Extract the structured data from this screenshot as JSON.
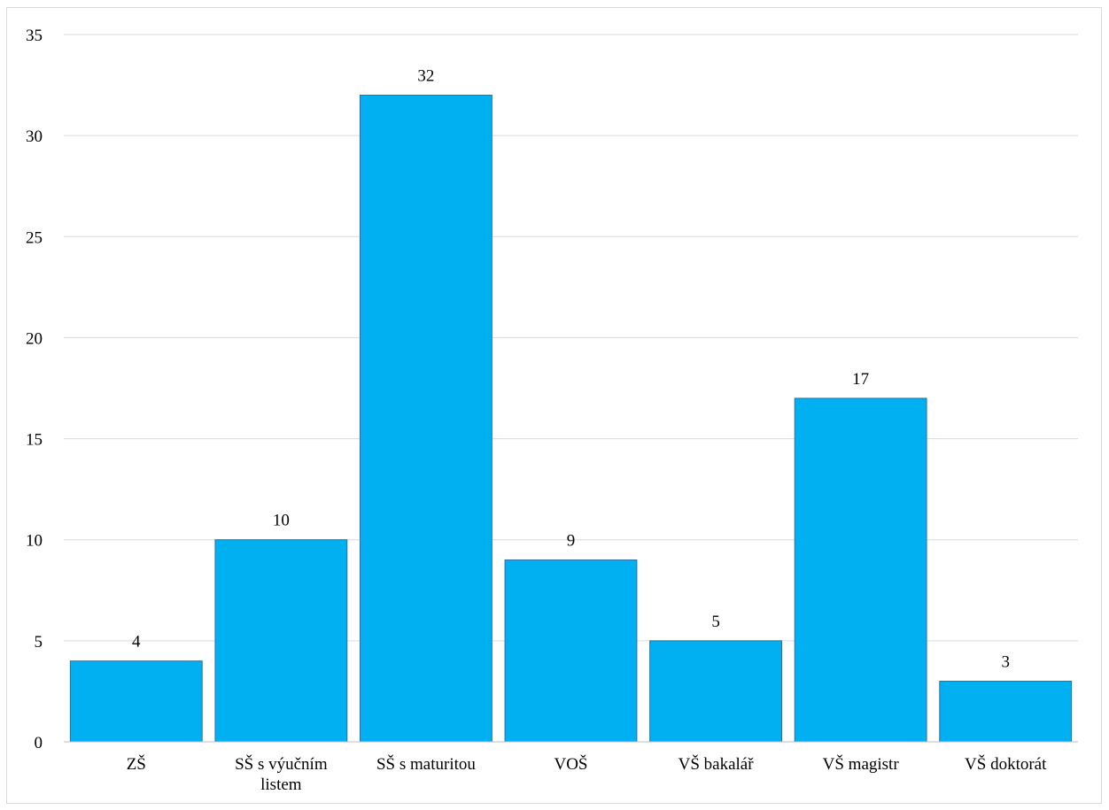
{
  "chart_data": {
    "type": "bar",
    "title": "",
    "xlabel": "",
    "ylabel": "",
    "categories": [
      [
        "ZŠ"
      ],
      [
        "SŠ s výučním",
        "listem"
      ],
      [
        "SŠ s maturitou"
      ],
      [
        "VOŠ"
      ],
      [
        "VŠ bakalář"
      ],
      [
        "VŠ magistr"
      ],
      [
        "VŠ doktorát"
      ]
    ],
    "values": [
      4,
      10,
      32,
      9,
      5,
      17,
      3
    ],
    "ylim": [
      0,
      35
    ],
    "yticks": [
      "0",
      "5",
      "10",
      "15",
      "20",
      "25",
      "30",
      "35"
    ],
    "grid": true,
    "legend": "none",
    "colors": {
      "bar_fill": "#00b0f0",
      "bar_stroke": "#2f6fa8",
      "grid": "#d9d9d9",
      "axis": "#bfbfbf"
    }
  }
}
